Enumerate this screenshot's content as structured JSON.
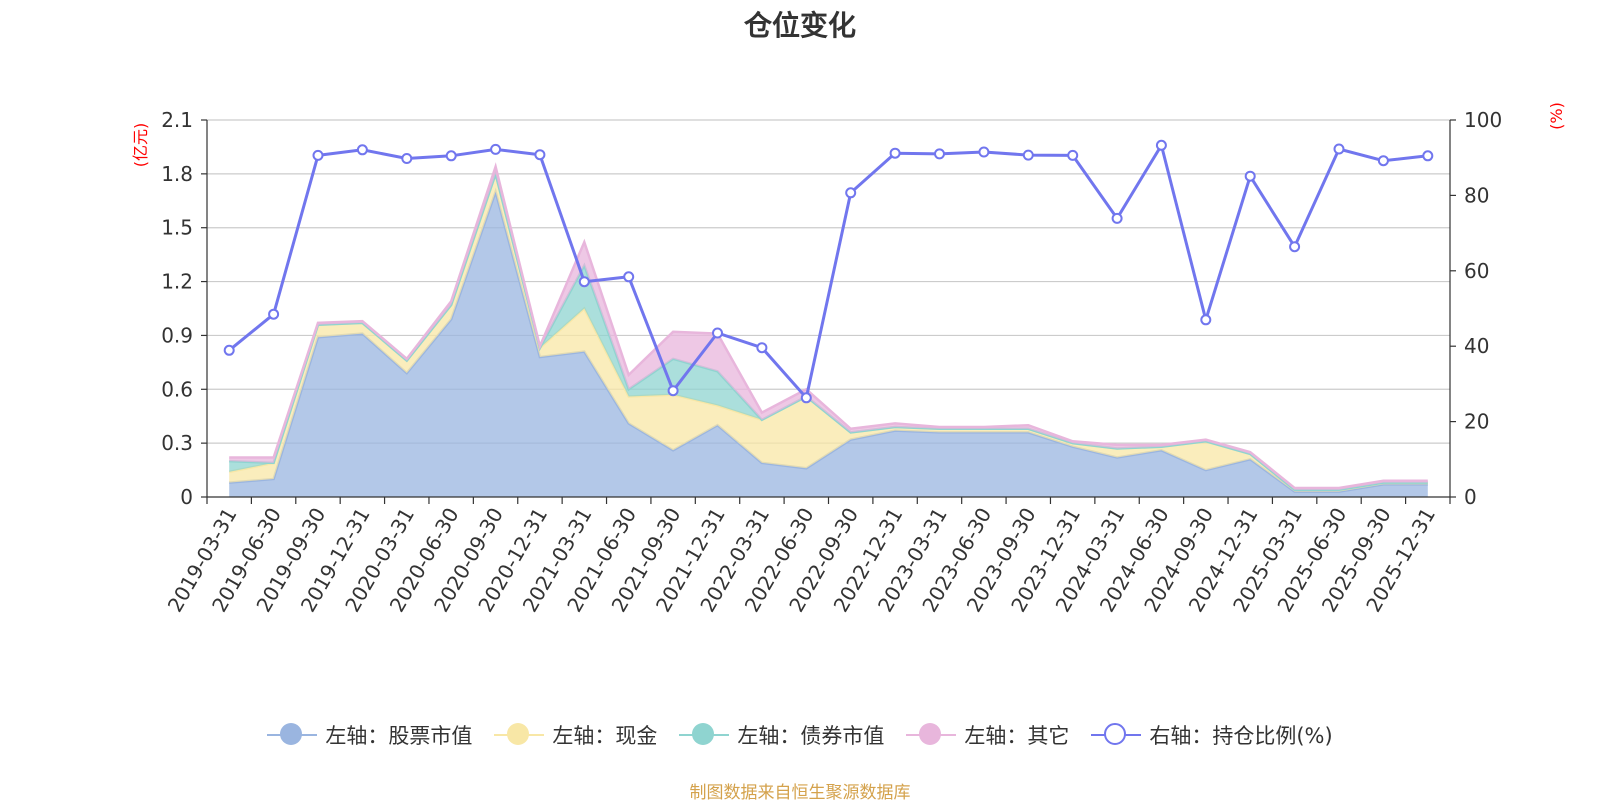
{
  "title": "仓位变化",
  "source": "制图数据来自恒生聚源数据库",
  "chart_data": {
    "type": "area",
    "categories": [
      "2019-03-31",
      "2019-06-30",
      "2019-09-30",
      "2019-12-31",
      "2020-03-31",
      "2020-06-30",
      "2020-09-30",
      "2020-12-31",
      "2021-03-31",
      "2021-06-30",
      "2021-09-30",
      "2021-12-31",
      "2022-03-31",
      "2022-06-30",
      "2022-09-30",
      "2022-12-31",
      "2023-03-31",
      "2023-06-30",
      "2023-09-30",
      "2023-12-31",
      "2024-03-31",
      "2024-06-30",
      "2024-09-30",
      "2024-12-31",
      "2025-03-31",
      "2025-06-30",
      "2025-09-30",
      "2025-12-31"
    ],
    "left_axis": {
      "unit": "(亿元)",
      "ticks": [
        "0",
        "0.3",
        "0.6",
        "0.9",
        "1.2",
        "1.5",
        "1.8",
        "2.1"
      ],
      "ylim": [
        0,
        2.1
      ]
    },
    "right_axis": {
      "unit": "(%)",
      "ticks": [
        "0",
        "20",
        "40",
        "60",
        "80",
        "100"
      ],
      "ylim": [
        0,
        100
      ]
    },
    "grid": true,
    "legend_position": "bottom",
    "series": [
      {
        "name": "左轴：股票市值",
        "axis": "left",
        "kind": "area",
        "color": "#9ab5e0",
        "values": [
          0.08,
          0.1,
          0.89,
          0.91,
          0.69,
          0.99,
          1.7,
          0.78,
          0.81,
          0.41,
          0.26,
          0.4,
          0.19,
          0.16,
          0.32,
          0.37,
          0.36,
          0.36,
          0.36,
          0.28,
          0.22,
          0.26,
          0.15,
          0.21,
          0.03,
          0.03,
          0.07,
          0.07
        ]
      },
      {
        "name": "左轴：现金",
        "axis": "left",
        "kind": "area",
        "color": "#f8e7a6",
        "values": [
          0.06,
          0.09,
          0.07,
          0.06,
          0.07,
          0.08,
          0.1,
          0.05,
          0.24,
          0.15,
          0.31,
          0.11,
          0.24,
          0.4,
          0.04,
          0.02,
          0.02,
          0.02,
          0.02,
          0.02,
          0.05,
          0.02,
          0.16,
          0.03,
          0.01,
          0.01,
          0.01,
          0.01
        ]
      },
      {
        "name": "左轴：债券市值",
        "axis": "left",
        "kind": "area",
        "color": "#8fd4d0",
        "values": [
          0.06,
          0,
          0,
          0,
          0,
          0,
          0,
          0,
          0.24,
          0.04,
          0.2,
          0.19,
          0,
          0,
          0,
          0,
          0,
          0,
          0,
          0,
          0,
          0,
          0,
          0,
          0,
          0,
          0,
          0
        ]
      },
      {
        "name": "左轴：其它",
        "axis": "left",
        "kind": "area",
        "color": "#e8b6dc",
        "values": [
          0.02,
          0.03,
          0.01,
          0.01,
          0.01,
          0.02,
          0.04,
          0.01,
          0.13,
          0.08,
          0.15,
          0.21,
          0.04,
          0.04,
          0.02,
          0.02,
          0.01,
          0.01,
          0.02,
          0.01,
          0.02,
          0.01,
          0.01,
          0.01,
          0.01,
          0.01,
          0.01,
          0.01
        ]
      },
      {
        "name": "右轴：持仓比例(%)",
        "axis": "right",
        "kind": "line",
        "color": "#7176ee",
        "values": [
          38.9,
          48.5,
          90.6,
          92.1,
          89.8,
          90.5,
          92.2,
          90.8,
          57.1,
          58.4,
          28.2,
          43.5,
          39.6,
          26.3,
          80.7,
          91.2,
          91.0,
          91.5,
          90.7,
          90.6,
          73.9,
          93.3,
          47.0,
          85.1,
          66.4,
          92.3,
          89.2,
          90.5
        ]
      }
    ]
  }
}
